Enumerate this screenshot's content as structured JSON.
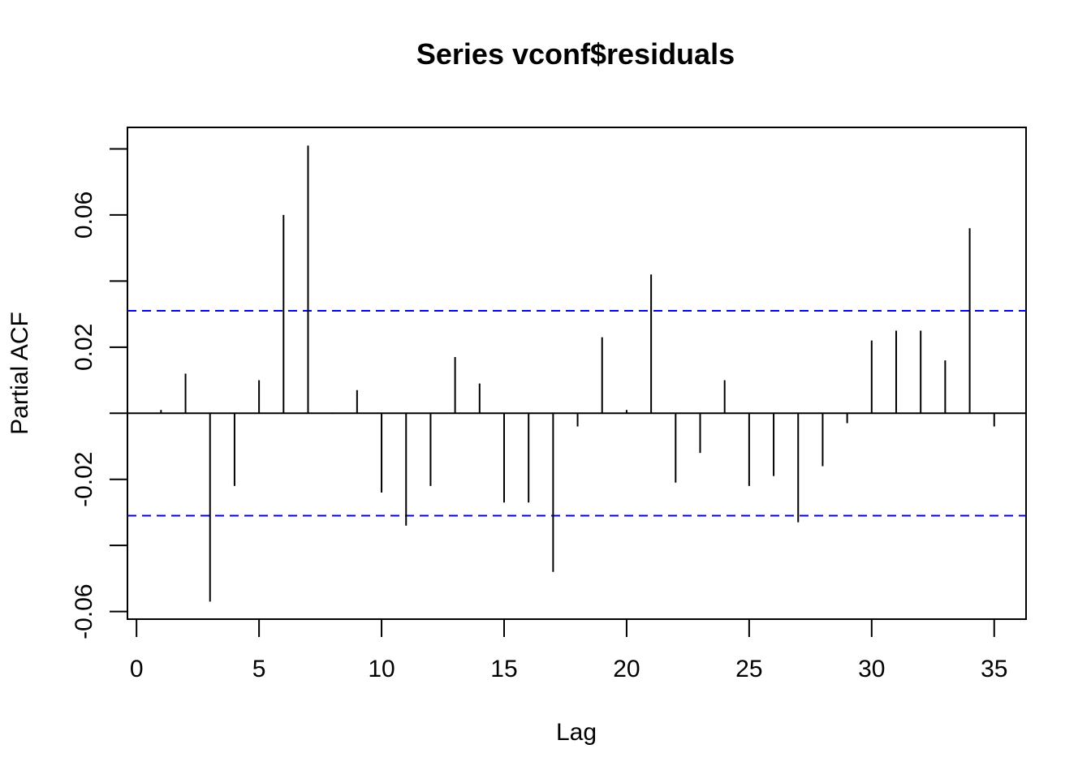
{
  "chart_data": {
    "type": "bar",
    "title": "Series  vconf$residuals",
    "xlabel": "Lag",
    "ylabel": "Partial ACF",
    "x_ticks": [
      "0",
      "5",
      "10",
      "15",
      "20",
      "25",
      "30",
      "35"
    ],
    "y_ticks": [
      "-0.06",
      "-0.02",
      "0.02",
      "0.06"
    ],
    "xlim": [
      -0.37,
      36.3
    ],
    "ylim": [
      -0.0623,
      0.0865
    ],
    "confidence_bound": 0.031,
    "colors": {
      "bars": "#000000",
      "confidence": "#0000ff",
      "frame": "#000000"
    },
    "lags": [
      1,
      2,
      3,
      4,
      5,
      6,
      7,
      8,
      9,
      10,
      11,
      12,
      13,
      14,
      15,
      16,
      17,
      18,
      19,
      20,
      21,
      22,
      23,
      24,
      25,
      26,
      27,
      28,
      29,
      30,
      31,
      32,
      33,
      34,
      35
    ],
    "values": [
      0.001,
      0.012,
      -0.057,
      -0.022,
      0.01,
      0.06,
      0.081,
      -0.0002,
      0.007,
      -0.024,
      -0.034,
      -0.022,
      0.017,
      0.009,
      -0.027,
      -0.027,
      -0.048,
      -0.004,
      0.023,
      0.001,
      0.042,
      -0.021,
      -0.012,
      0.01,
      -0.022,
      -0.019,
      -0.033,
      -0.016,
      -0.003,
      0.022,
      0.025,
      0.025,
      0.016,
      0.056,
      -0.004
    ]
  }
}
